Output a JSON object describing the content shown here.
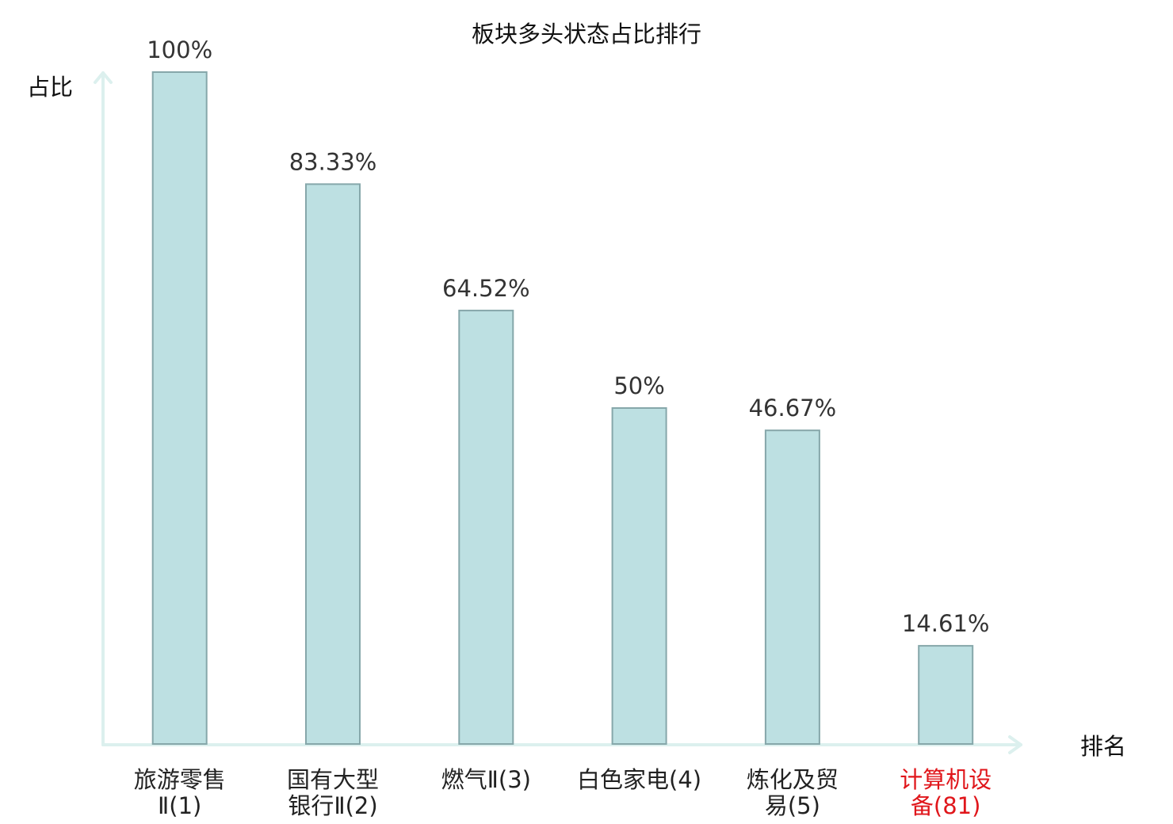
{
  "chart_data": {
    "type": "bar",
    "title": "板块多头状态占比排行",
    "xlabel": "排名",
    "ylabel": "占比",
    "ylim": [
      0,
      100
    ],
    "grid": false,
    "categories": [
      [
        "旅游零售",
        "Ⅱ(1)"
      ],
      [
        "国有大型",
        "银行Ⅱ(2)"
      ],
      [
        "燃气Ⅱ(3)"
      ],
      [
        "白色家电(4)"
      ],
      [
        "炼化及贸",
        "易(5)"
      ],
      [
        "计算机设",
        "备(81)"
      ]
    ],
    "values": [
      100,
      83.33,
      64.52,
      50,
      46.67,
      14.61
    ],
    "value_labels": [
      "100%",
      "83.33%",
      "64.52%",
      "50%",
      "46.67%",
      "14.61%"
    ],
    "highlight_index": 5,
    "colors": {
      "bar_fill": "#bde0e2",
      "bar_stroke": "#86a7aa",
      "axis": "#dcf0ee",
      "highlight": "#e0161b"
    }
  }
}
